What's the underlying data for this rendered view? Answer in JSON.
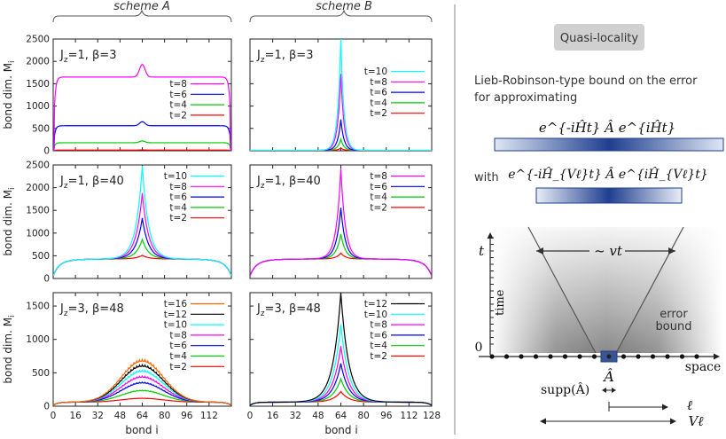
{
  "figure": {
    "scheme_headers": [
      "scheme A",
      "scheme B"
    ],
    "ylabel": "bond dim. M",
    "ylabel_sub": "i",
    "xlabel": "bond i",
    "x_ticks_A": [
      "0",
      "16",
      "32",
      "48",
      "64",
      "80",
      "96",
      "112"
    ],
    "x_ticks_B": [
      "0",
      "16",
      "32",
      "48",
      "64",
      "80",
      "96",
      "112",
      "128"
    ]
  },
  "right_panel": {
    "badge": "Quasi-locality",
    "desc_line1": "Lieb-Robinson-type bound on the error",
    "desc_line2": "for approximating",
    "formula1": "e^{-iĤt} Â e^{iĤt}",
    "with_label": "with",
    "formula2": "e^{-iĤ_{Vℓ}t} Â e^{iĤ_{Vℓ}t}",
    "t_label": "t",
    "time_label": "time",
    "vt_label": "~ vt",
    "zero_label": "0",
    "space_label": "space",
    "error_line1": "error",
    "error_line2": "bound",
    "a_hat": "Â",
    "supp_label": "supp(Â)",
    "ell_label": "ℓ",
    "v_ell_label": "Vℓ",
    "colors": {
      "accent": "#1f3f8f",
      "badge_bg": "#d0d0d0"
    }
  },
  "chart_data": [
    {
      "type": "line",
      "panel": "A-top",
      "title": "J_z=1, β=3",
      "x_range": [
        0,
        128
      ],
      "ylim": [
        0,
        2500
      ],
      "yticks": [
        "0",
        "500",
        "1000",
        "1500",
        "2000",
        "2500"
      ],
      "legend_position": "center-right",
      "series": [
        {
          "name": "t=8",
          "color": "#ff00ff",
          "plateau": 1650,
          "center_peak": 1930
        },
        {
          "name": "t=6",
          "color": "#0000ff",
          "plateau": 560,
          "center_peak": 650
        },
        {
          "name": "t=4",
          "color": "#00cc00",
          "plateau": 180,
          "center_peak": 220
        },
        {
          "name": "t=2",
          "color": "#ff0000",
          "plateau": 15,
          "center_peak": 20
        }
      ]
    },
    {
      "type": "line",
      "panel": "B-top",
      "title": "J_z=1, β=3",
      "x_range": [
        0,
        128
      ],
      "ylim": [
        0,
        2500
      ],
      "legend_position": "center-right",
      "series": [
        {
          "name": "t=10",
          "color": "#00ffff",
          "plateau": 30,
          "center_peak": 2500
        },
        {
          "name": "t=8",
          "color": "#ff00ff",
          "plateau": 30,
          "center_peak": 1720
        },
        {
          "name": "t=6",
          "color": "#0000ff",
          "plateau": 30,
          "center_peak": 700
        },
        {
          "name": "t=4",
          "color": "#00cc00",
          "plateau": 30,
          "center_peak": 260
        },
        {
          "name": "t=2",
          "color": "#ff0000",
          "plateau": 30,
          "center_peak": 60
        }
      ]
    },
    {
      "type": "line",
      "panel": "A-mid",
      "title": "J_z=1, β=40",
      "x_range": [
        0,
        128
      ],
      "ylim": [
        0,
        2500
      ],
      "yticks": [
        "0",
        "500",
        "1000",
        "1500",
        "2000",
        "2500"
      ],
      "legend_position": "top-right",
      "series": [
        {
          "name": "t=10",
          "color": "#00ffff",
          "plateau": 430,
          "center_peak": 2480
        },
        {
          "name": "t=8",
          "color": "#ff00ff",
          "plateau": 430,
          "center_peak": 1880
        },
        {
          "name": "t=6",
          "color": "#0000ff",
          "plateau": 430,
          "center_peak": 1330
        },
        {
          "name": "t=4",
          "color": "#00cc00",
          "plateau": 430,
          "center_peak": 860
        },
        {
          "name": "t=2",
          "color": "#ff0000",
          "plateau": 430,
          "center_peak": 510
        }
      ]
    },
    {
      "type": "line",
      "panel": "B-mid",
      "title": "J_z=1, β=40",
      "x_range": [
        0,
        128
      ],
      "ylim": [
        0,
        2500
      ],
      "legend_position": "top-right",
      "series": [
        {
          "name": "t=8",
          "color": "#ff00ff",
          "plateau": 430,
          "center_peak": 2420
        },
        {
          "name": "t=6",
          "color": "#0000ff",
          "plateau": 430,
          "center_peak": 1560
        },
        {
          "name": "t=4",
          "color": "#00cc00",
          "plateau": 430,
          "center_peak": 980
        },
        {
          "name": "t=2",
          "color": "#ff0000",
          "plateau": 430,
          "center_peak": 560
        }
      ]
    },
    {
      "type": "line",
      "panel": "A-bot",
      "title": "J_z=3, β=48",
      "x_range": [
        0,
        128
      ],
      "ylim": [
        0,
        1700
      ],
      "yticks": [
        "0",
        "500",
        "1000",
        "1500"
      ],
      "legend_position": "top-right",
      "series": [
        {
          "name": "t=16",
          "color": "#ff6600",
          "plateau": 60,
          "center_peak": 700
        },
        {
          "name": "t=12",
          "color": "#000000",
          "plateau": 60,
          "center_peak": 620
        },
        {
          "name": "t=10",
          "color": "#00ffff",
          "plateau": 60,
          "center_peak": 540
        },
        {
          "name": "t=8",
          "color": "#ff00ff",
          "plateau": 60,
          "center_peak": 450
        },
        {
          "name": "t=6",
          "color": "#0000ff",
          "plateau": 60,
          "center_peak": 360
        },
        {
          "name": "t=4",
          "color": "#00cc00",
          "plateau": 60,
          "center_peak": 240
        },
        {
          "name": "t=2",
          "color": "#ff0000",
          "plateau": 60,
          "center_peak": 120
        }
      ]
    },
    {
      "type": "line",
      "panel": "B-bot",
      "title": "J_z=3, β=48",
      "x_range": [
        0,
        128
      ],
      "ylim": [
        0,
        1700
      ],
      "legend_position": "top-right",
      "series": [
        {
          "name": "t=12",
          "color": "#000000",
          "plateau": 60,
          "center_peak": 1700
        },
        {
          "name": "t=10",
          "color": "#00ffff",
          "plateau": 60,
          "center_peak": 1230
        },
        {
          "name": "t=8",
          "color": "#ff00ff",
          "plateau": 60,
          "center_peak": 900
        },
        {
          "name": "t=6",
          "color": "#0000ff",
          "plateau": 60,
          "center_peak": 640
        },
        {
          "name": "t=4",
          "color": "#00cc00",
          "plateau": 60,
          "center_peak": 410
        },
        {
          "name": "t=2",
          "color": "#ff0000",
          "plateau": 60,
          "center_peak": 220
        }
      ]
    }
  ]
}
